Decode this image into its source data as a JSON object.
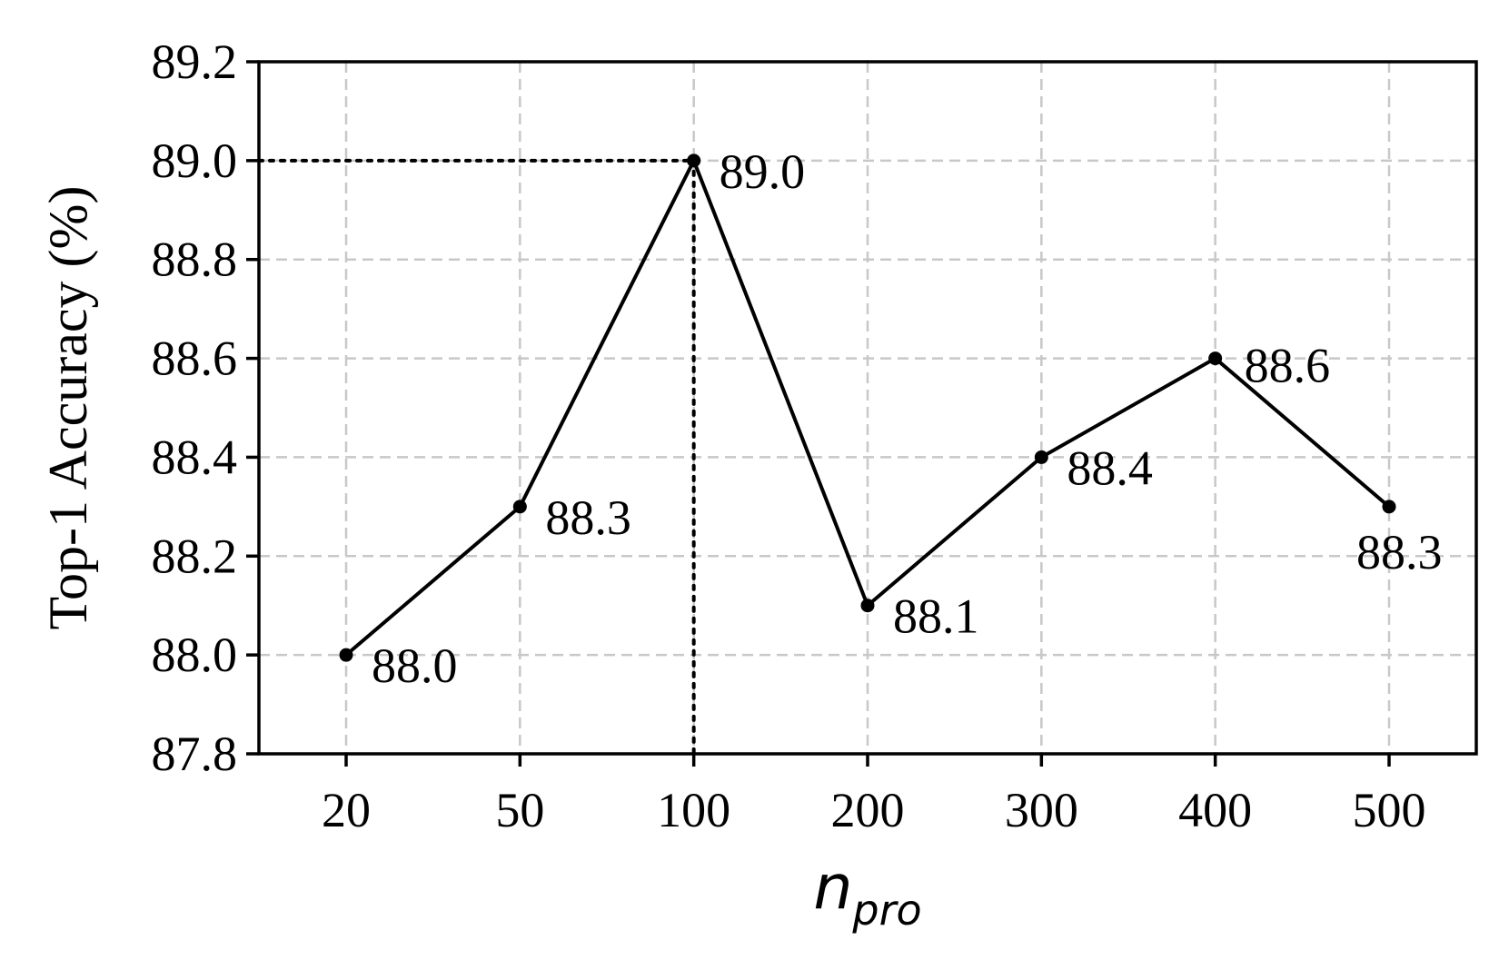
{
  "chart_data": {
    "type": "line",
    "categories": [
      "20",
      "50",
      "100",
      "200",
      "300",
      "400",
      "500"
    ],
    "series": [
      {
        "values": [
          88.0,
          88.3,
          89.0,
          88.1,
          88.4,
          88.6,
          88.3
        ],
        "labels": [
          "88.0",
          "88.3",
          "89.0",
          "88.1",
          "88.4",
          "88.6",
          "88.3"
        ]
      }
    ],
    "xlabel": {
      "main": "n",
      "subscript": "pro"
    },
    "ylabel": "Top-1 Accuracy (%)",
    "ylim": [
      87.8,
      89.2
    ],
    "yticks": [
      "87.8",
      "88.0",
      "88.2",
      "88.4",
      "88.6",
      "88.8",
      "89.0",
      "89.2"
    ],
    "grid": true,
    "highlight": {
      "category": "100",
      "value": 89.0,
      "style": "dotted reference lines to axes"
    },
    "colors": {
      "line": "#000000",
      "grid": "#c8c8c8",
      "axes": "#000000"
    }
  }
}
